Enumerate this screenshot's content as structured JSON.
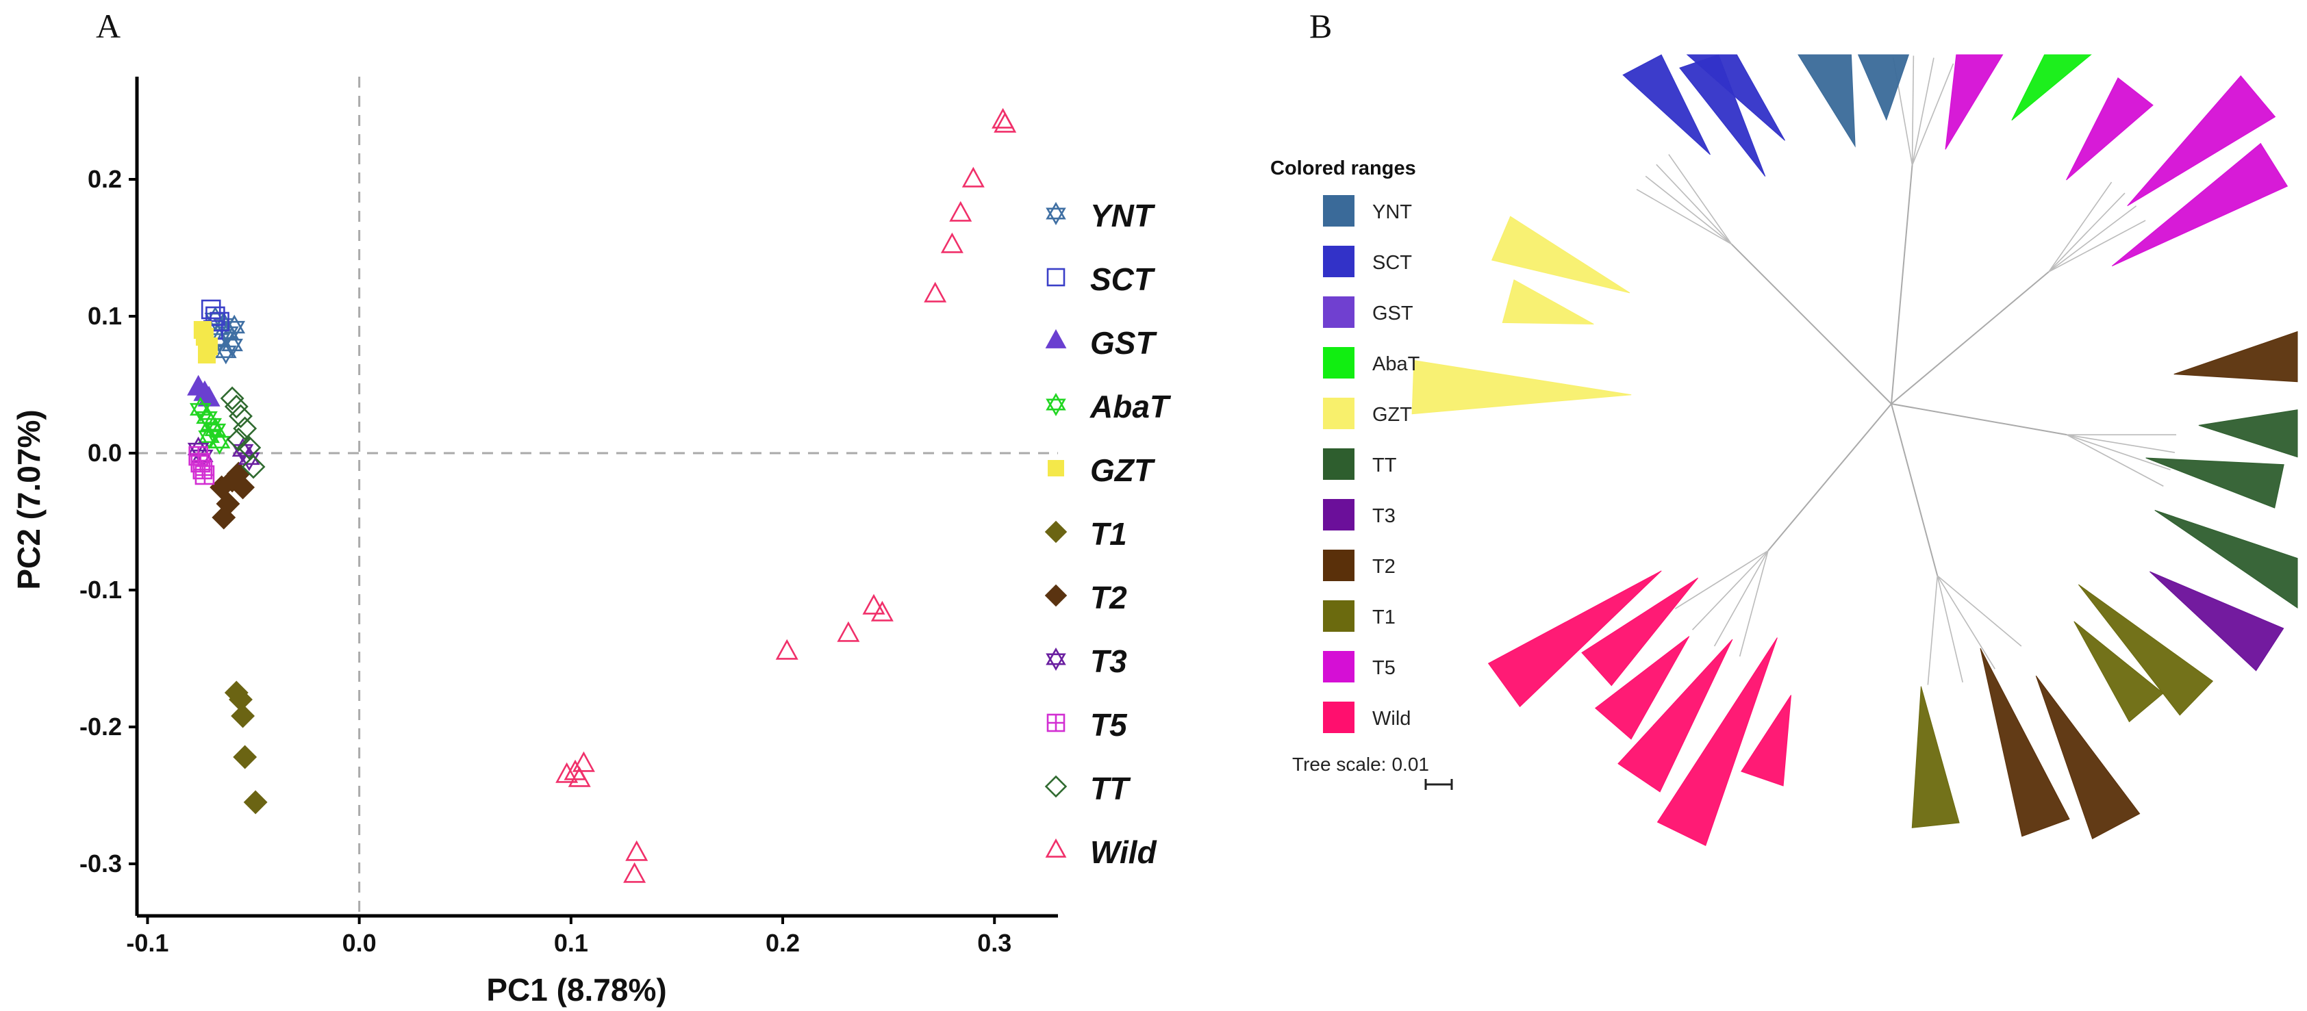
{
  "panels": {
    "a": "A",
    "b": "B"
  },
  "chart_data": [
    {
      "type": "scatter",
      "title": "",
      "xlabel": "PC1 (8.78%)",
      "ylabel": "PC2 (7.07%)",
      "xlim": [
        -0.105,
        0.33
      ],
      "ylim": [
        -0.338,
        0.275
      ],
      "xticks": [
        -0.1,
        0.0,
        0.1,
        0.2,
        0.3
      ],
      "xtick_labels": [
        "-0.1",
        "0.0",
        "0.1",
        "0.2",
        "0.3"
      ],
      "yticks": [
        0.2,
        0.1,
        0.0,
        -0.1,
        -0.2,
        -0.3
      ],
      "ytick_labels": [
        "0.2",
        "0.1",
        "0.0",
        "-0.1",
        "-0.2",
        "-0.3"
      ],
      "reference_lines": {
        "x": 0,
        "y": 0,
        "style": "dashed"
      },
      "legend_position": "right",
      "series": [
        {
          "name": "YNT",
          "marker": "star6",
          "color": "#3f6fa3",
          "x": [
            -0.068,
            -0.064,
            -0.062,
            -0.066,
            -0.06,
            -0.063,
            -0.059
          ],
          "y": [
            0.098,
            0.094,
            0.088,
            0.083,
            0.079,
            0.074,
            0.092
          ]
        },
        {
          "name": "SCT",
          "marker": "square-open",
          "color": "#3a3fc8",
          "x": [
            -0.07,
            -0.068,
            -0.066,
            -0.069
          ],
          "y": [
            0.105,
            0.1,
            0.096,
            0.09
          ]
        },
        {
          "name": "GST",
          "marker": "triangle-filled",
          "color": "#6a3fd0",
          "x": [
            -0.076,
            -0.073,
            -0.071
          ],
          "y": [
            0.048,
            0.044,
            0.04
          ]
        },
        {
          "name": "AbaT",
          "marker": "star6",
          "color": "#22d622",
          "x": [
            -0.075,
            -0.072,
            -0.07,
            -0.068,
            -0.071,
            -0.066
          ],
          "y": [
            0.032,
            0.026,
            0.021,
            0.017,
            0.012,
            0.008
          ]
        },
        {
          "name": "GZT",
          "marker": "square-filled",
          "color": "#f4e84a",
          "x": [
            -0.074,
            -0.073,
            -0.071,
            -0.072
          ],
          "y": [
            0.09,
            0.085,
            0.078,
            0.072
          ]
        },
        {
          "name": "T1",
          "marker": "diamond-filled",
          "color": "#6b6413",
          "x": [
            -0.058,
            -0.056,
            -0.055,
            -0.054,
            -0.049
          ],
          "y": [
            -0.175,
            -0.18,
            -0.192,
            -0.222,
            -0.255
          ]
        },
        {
          "name": "T2",
          "marker": "diamond-filled",
          "color": "#5a3310",
          "x": [
            -0.065,
            -0.06,
            -0.057,
            -0.055,
            -0.062,
            -0.064
          ],
          "y": [
            -0.025,
            -0.02,
            -0.015,
            -0.025,
            -0.037,
            -0.047
          ]
        },
        {
          "name": "T3",
          "marker": "star6",
          "color": "#6a1fa0",
          "x": [
            -0.076,
            -0.074,
            -0.055,
            -0.052
          ],
          "y": [
            0.003,
            -0.002,
            0.002,
            -0.004
          ]
        },
        {
          "name": "T5",
          "marker": "square-grid",
          "color": "#d22ed2",
          "x": [
            -0.076,
            -0.075,
            -0.074,
            -0.073
          ],
          "y": [
            -0.002,
            -0.007,
            -0.012,
            -0.016
          ]
        },
        {
          "name": "TT",
          "marker": "diamond-open",
          "color": "#2f6a2f",
          "x": [
            -0.06,
            -0.058,
            -0.056,
            -0.054,
            -0.057,
            -0.05,
            -0.052
          ],
          "y": [
            0.04,
            0.034,
            0.027,
            0.018,
            0.01,
            -0.01,
            0.004
          ]
        },
        {
          "name": "Wild",
          "marker": "triangle-open",
          "color": "#f0306a",
          "x": [
            0.304,
            0.305,
            0.29,
            0.284,
            0.28,
            0.272,
            0.243,
            0.247,
            0.231,
            0.202,
            0.106,
            0.102,
            0.104,
            0.098,
            0.131,
            0.13
          ],
          "y": [
            0.243,
            0.24,
            0.2,
            0.175,
            0.152,
            0.116,
            -0.112,
            -0.117,
            -0.132,
            -0.145,
            -0.227,
            -0.233,
            -0.238,
            -0.235,
            -0.292,
            -0.308
          ]
        }
      ]
    },
    {
      "type": "tree",
      "title": "",
      "legend_title": "Colored ranges",
      "ranges": [
        {
          "name": "YNT",
          "color": "#3a6a99"
        },
        {
          "name": "SCT",
          "color": "#3232c8"
        },
        {
          "name": "GST",
          "color": "#7040d0"
        },
        {
          "name": "AbaT",
          "color": "#11ee11"
        },
        {
          "name": "GZT",
          "color": "#f8f06c"
        },
        {
          "name": "TT",
          "color": "#2e5e2e"
        },
        {
          "name": "T3",
          "color": "#6b0f9a"
        },
        {
          "name": "T2",
          "color": "#5a300a"
        },
        {
          "name": "T1",
          "color": "#6b6a0e"
        },
        {
          "name": "T5",
          "color": "#d50fd5"
        },
        {
          "name": "Wild",
          "color": "#ff0f6e"
        }
      ],
      "tree_scale": {
        "label": "Tree scale:",
        "value": "0.01"
      },
      "clades": [
        {
          "group": "YNT",
          "angle": -98
        },
        {
          "group": "YNT",
          "angle": -91
        },
        {
          "group": "SCT",
          "angle": -126
        },
        {
          "group": "SCT",
          "angle": -119
        },
        {
          "group": "SCT",
          "angle": -112
        },
        {
          "group": "AbaT",
          "angle": -67
        },
        {
          "group": "T5",
          "angle": -78
        },
        {
          "group": "T5",
          "angle": -52
        },
        {
          "group": "T5",
          "angle": -40
        },
        {
          "group": "T5",
          "angle": -32
        },
        {
          "group": "GZT",
          "angle": -157
        },
        {
          "group": "GZT",
          "angle": -165
        },
        {
          "group": "GZT",
          "angle": -178
        },
        {
          "group": "T2",
          "angle": -6
        },
        {
          "group": "TT",
          "angle": 4
        },
        {
          "group": "TT",
          "angle": 12
        },
        {
          "group": "TT",
          "angle": 22
        },
        {
          "group": "T3",
          "angle": 33
        },
        {
          "group": "T1",
          "angle": 44
        },
        {
          "group": "T1",
          "angle": 50
        },
        {
          "group": "T2",
          "angle": 62
        },
        {
          "group": "T2",
          "angle": 70
        },
        {
          "group": "T1",
          "angle": 84
        },
        {
          "group": "Wild",
          "angle": 109
        },
        {
          "group": "Wild",
          "angle": 116
        },
        {
          "group": "Wild",
          "angle": 124
        },
        {
          "group": "Wild",
          "angle": 131
        },
        {
          "group": "Wild",
          "angle": 138
        },
        {
          "group": "Wild",
          "angle": 144
        }
      ]
    }
  ]
}
